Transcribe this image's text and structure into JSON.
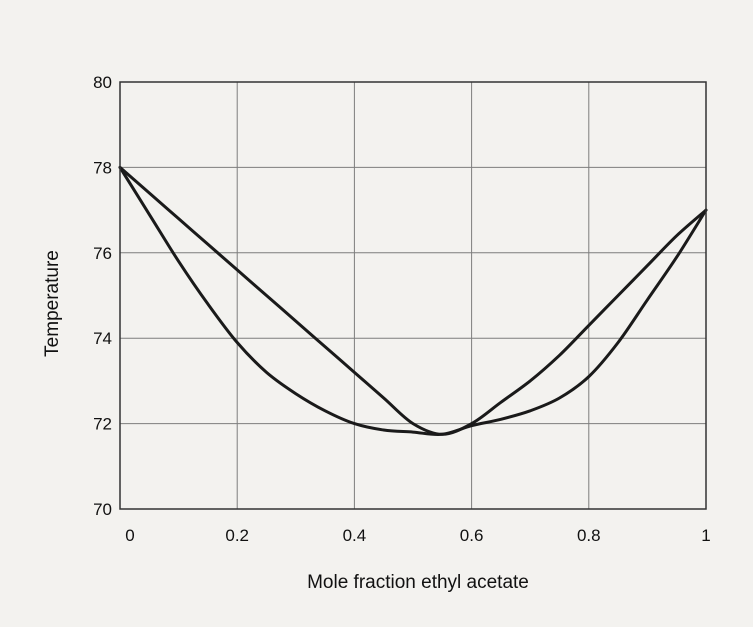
{
  "chart_data": {
    "type": "line",
    "title": "",
    "xlabel": "Mole fraction ethyl acetate",
    "ylabel": "Temperature",
    "xlim": [
      0,
      1
    ],
    "ylim": [
      70,
      80
    ],
    "x_ticks": [
      "0",
      "0.2",
      "0.4",
      "0.6",
      "0.8",
      "1"
    ],
    "y_ticks": [
      "70",
      "72",
      "74",
      "76",
      "78",
      "80"
    ],
    "grid": true,
    "legend": "none",
    "series": [
      {
        "x": [
          0,
          0.05,
          0.1,
          0.15,
          0.2,
          0.25,
          0.3,
          0.35,
          0.4,
          0.45,
          0.5,
          0.55,
          0.6,
          0.65,
          0.7,
          0.75,
          0.8,
          0.85,
          0.9,
          0.95,
          1
        ],
        "values": [
          78.0,
          76.9,
          75.8,
          74.8,
          73.9,
          73.2,
          72.7,
          72.3,
          72.0,
          71.85,
          71.8,
          71.75,
          71.95,
          72.1,
          72.3,
          72.6,
          73.1,
          73.9,
          74.9,
          75.9,
          77.0
        ]
      },
      {
        "x": [
          0,
          0.05,
          0.1,
          0.15,
          0.2,
          0.25,
          0.3,
          0.35,
          0.4,
          0.45,
          0.5,
          0.55,
          0.6,
          0.65,
          0.7,
          0.75,
          0.8,
          0.85,
          0.9,
          0.95,
          1
        ],
        "values": [
          78.0,
          77.4,
          76.8,
          76.2,
          75.6,
          75.0,
          74.4,
          73.8,
          73.2,
          72.6,
          72.0,
          71.75,
          72.0,
          72.5,
          73.0,
          73.6,
          74.3,
          75.0,
          75.7,
          76.4,
          77.0
        ]
      }
    ]
  }
}
